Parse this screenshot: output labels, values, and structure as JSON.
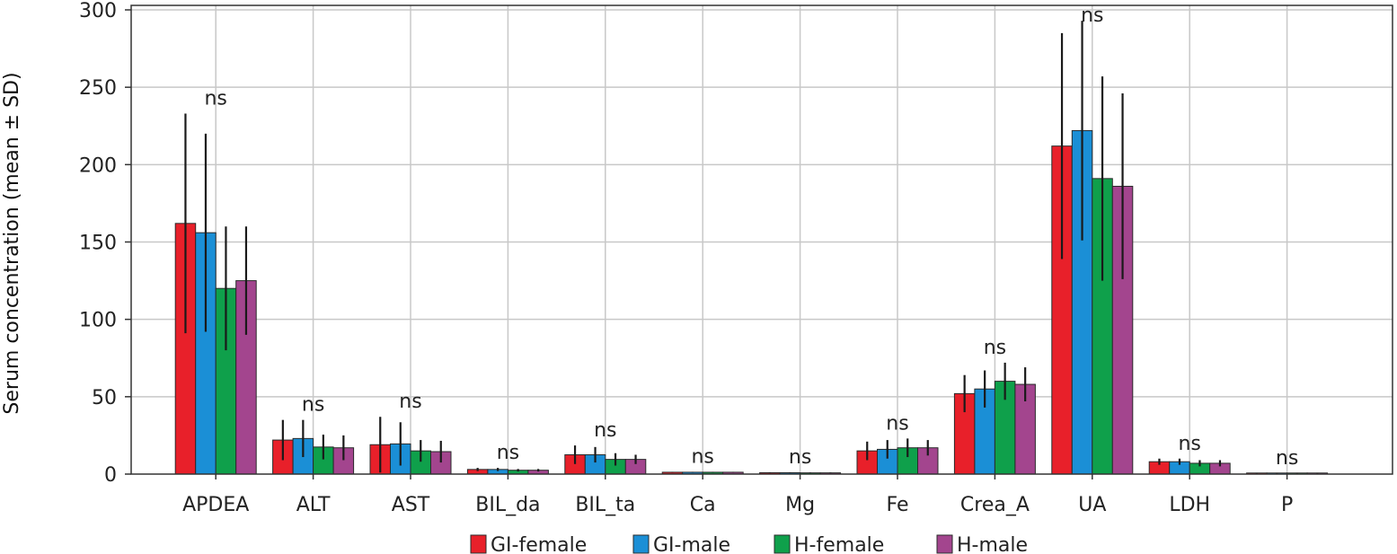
{
  "chart_data": {
    "type": "bar",
    "title": "",
    "xlabel": "",
    "ylabel": "Serum concentration (mean ± SD)",
    "ylim": [
      0,
      300
    ],
    "yticks": [
      0,
      50,
      100,
      150,
      200,
      250,
      300
    ],
    "grid": true,
    "legend_position": "bottom-center",
    "categories": [
      "APDEA",
      "ALT",
      "AST",
      "BIL_da",
      "BIL_ta",
      "Ca",
      "Mg",
      "Fe",
      "Crea_A",
      "UA",
      "LDH",
      "P"
    ],
    "annotations": [
      "ns",
      "ns",
      "ns",
      "ns",
      "ns",
      "ns",
      "ns",
      "ns",
      "ns",
      "ns",
      "ns",
      "ns"
    ],
    "series": [
      {
        "name": "GI-female",
        "color": "#e8202a",
        "values": [
          162,
          22,
          19,
          3,
          12.5,
          1.2,
          0.9,
          15,
          52,
          212,
          8,
          0.5
        ],
        "errors": [
          71,
          13,
          18,
          1,
          6,
          0.2,
          0.2,
          6,
          12,
          73,
          2,
          0.2
        ]
      },
      {
        "name": "GI-male",
        "color": "#1b8fd6",
        "values": [
          156,
          23,
          19.5,
          3,
          12.5,
          1.2,
          0.9,
          16,
          55,
          222,
          8,
          0.5
        ],
        "errors": [
          64,
          12,
          14,
          1,
          5,
          0.2,
          0.2,
          6,
          12,
          71,
          2,
          0.2
        ]
      },
      {
        "name": "H-female",
        "color": "#0fa04b",
        "values": [
          120,
          17.5,
          15,
          2.5,
          9.5,
          1.2,
          0.8,
          17,
          60,
          191,
          7,
          0.5
        ],
        "errors": [
          40,
          8,
          7,
          0.8,
          4,
          0.2,
          0.2,
          6,
          12,
          66,
          2,
          0.2
        ]
      },
      {
        "name": "H-male",
        "color": "#a3458e",
        "values": [
          125,
          17,
          14.5,
          2.5,
          9.5,
          1.2,
          0.8,
          17,
          58,
          186,
          7,
          0.5
        ],
        "errors": [
          35,
          8,
          7,
          0.8,
          3,
          0.2,
          0.2,
          5,
          11,
          60,
          2,
          0.2
        ]
      }
    ]
  }
}
